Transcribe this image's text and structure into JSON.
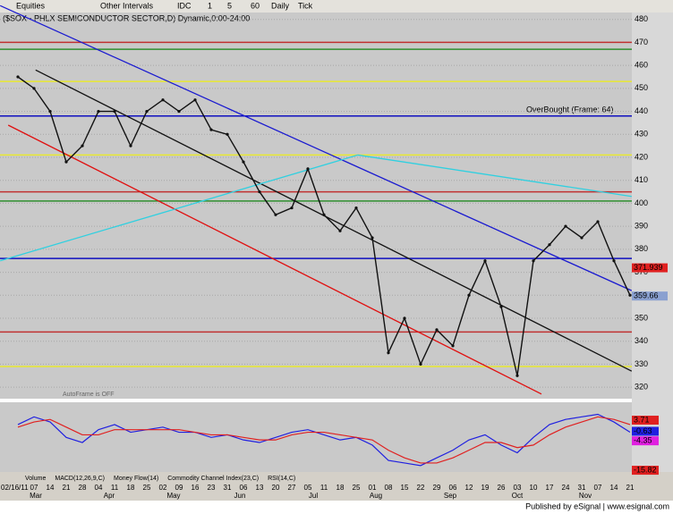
{
  "toolbar": {
    "items": [
      "Equities",
      "Other Intervals",
      "IDC",
      "1",
      "5",
      "60",
      "Daily",
      "Tick"
    ]
  },
  "chart_data": {
    "type": "line",
    "title": "($SOX - PHLX SEMICONDUCTOR SECTOR,D) Dynamic,0:00-24:00",
    "categories": [
      "02/16/11",
      "07",
      "14",
      "21",
      "28",
      "04",
      "11",
      "18",
      "25",
      "02",
      "09",
      "16",
      "23",
      "31",
      "06",
      "13",
      "20",
      "27",
      "05",
      "11",
      "18",
      "25",
      "01",
      "08",
      "15",
      "22",
      "29",
      "06",
      "12",
      "19",
      "26",
      "03",
      "10",
      "17",
      "24",
      "31",
      "07",
      "14",
      "21"
    ],
    "months": [
      "Mar",
      "Apr",
      "May",
      "Jun",
      "Jul",
      "Aug",
      "Sep",
      "Oct",
      "Nov"
    ],
    "series": [
      {
        "name": "$SOX",
        "color": "#111111",
        "values": [
          455,
          450,
          440,
          418,
          425,
          440,
          440,
          425,
          440,
          445,
          440,
          445,
          432,
          430,
          418,
          405,
          395,
          398,
          415,
          395,
          388,
          398,
          385,
          335,
          350,
          330,
          345,
          338,
          360,
          375,
          355,
          325,
          375,
          382,
          390,
          385,
          392,
          375,
          360
        ]
      }
    ],
    "levels": [
      {
        "value": 470,
        "color": "#c03030"
      },
      {
        "value": 467,
        "color": "#2f8f2f"
      },
      {
        "value": 453,
        "color": "#e8e830"
      },
      {
        "value": 438,
        "color": "#1010c0"
      },
      {
        "value": 421,
        "color": "#e8e830"
      },
      {
        "value": 405,
        "color": "#c03030"
      },
      {
        "value": 401,
        "color": "#2f8f2f"
      },
      {
        "value": 376,
        "color": "#1010c0"
      },
      {
        "value": 344,
        "color": "#c03030"
      },
      {
        "value": 329,
        "color": "#e8e830"
      }
    ],
    "trendlines": [
      {
        "color": "#1a1ad0",
        "from": [
          -1.1,
          486
        ],
        "to": [
          38.1,
          362
        ]
      },
      {
        "color": "#111111",
        "from": [
          1.1,
          458
        ],
        "to": [
          38.1,
          327
        ]
      },
      {
        "color": "#e01010",
        "from": [
          -0.6,
          434
        ],
        "to": [
          32.5,
          317
        ]
      },
      {
        "color": "#30d0e0",
        "from": [
          -1.1,
          375
        ],
        "to": [
          21.1,
          421
        ]
      },
      {
        "color": "#30d0e0",
        "from": [
          21.1,
          421
        ],
        "to": [
          38.1,
          403
        ]
      }
    ],
    "price_labels": [
      {
        "value": 371.939,
        "label": "371.939",
        "color": "#e02020"
      },
      {
        "value": 359.66,
        "label": "359.66",
        "color": "#8aa0d0"
      }
    ],
    "annotation": "OverBought (Frame: 64)",
    "autoframe": "AutoFrame is OFF",
    "ylim": [
      315,
      483
    ],
    "yticks": [
      320,
      330,
      340,
      350,
      360,
      370,
      380,
      390,
      400,
      410,
      420,
      430,
      440,
      450,
      460,
      470,
      480
    ],
    "indicator": {
      "ylim": [
        -16.5,
        10
      ],
      "series": [
        {
          "name": "MACD",
          "color": "#2020e0",
          "values": [
            2,
            5,
            3,
            -3,
            -5,
            0,
            2,
            -1,
            0,
            1,
            -1,
            -1,
            -3,
            -2,
            -4,
            -5,
            -3,
            -1,
            0,
            -2,
            -4,
            -3,
            -6,
            -12,
            -13,
            -14,
            -11,
            -8,
            -4,
            -2,
            -6,
            -9,
            -3,
            2,
            4,
            5,
            6,
            3,
            -1
          ]
        },
        {
          "name": "Signal",
          "color": "#e02020",
          "values": [
            1,
            3,
            4,
            1,
            -2,
            -2,
            0,
            0,
            0,
            0,
            0,
            -1,
            -2,
            -2,
            -3,
            -4,
            -4,
            -2,
            -1,
            -1,
            -2,
            -3,
            -4,
            -8,
            -11,
            -13,
            -13,
            -11,
            -8,
            -5,
            -5,
            -7,
            -6,
            -2,
            1,
            3,
            5,
            4,
            2
          ]
        }
      ],
      "labels": [
        {
          "value": 3.71,
          "color": "#e02020"
        },
        {
          "value": -0.63,
          "color": "#2020e0"
        },
        {
          "value": -4.35,
          "color": "#e020e0"
        },
        {
          "value": -15.82,
          "color": "#e02020"
        }
      ]
    }
  },
  "tabs": [
    "Volume",
    "MACD(12,26,9,C)",
    "Money Flow(14)",
    "Commodity Channel Index(23,C)",
    "RSI(14,C)"
  ],
  "footer": "Published by eSignal | www.esignal.com"
}
